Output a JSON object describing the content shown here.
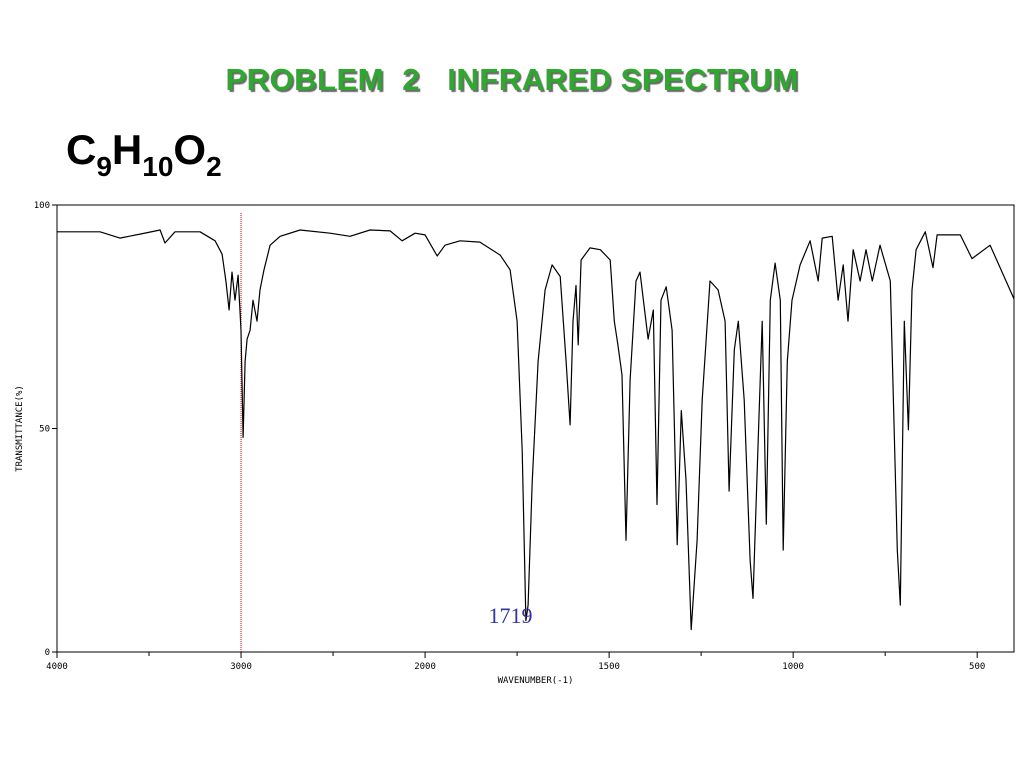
{
  "chart_data": {
    "type": "line",
    "title": "PROBLEM  2   INFRARED SPECTRUM",
    "formula": [
      {
        "text": "C"
      },
      {
        "text": "9",
        "sub": true
      },
      {
        "text": "H"
      },
      {
        "text": "10",
        "sub": true
      },
      {
        "text": "O"
      },
      {
        "text": "2",
        "sub": true
      }
    ],
    "xlabel": "WAVENUMBER(-1)",
    "ylabel": "TRANSMITTANCE(%)",
    "xlim": [
      4000,
      400
    ],
    "xscale": {
      "break": 2000,
      "factor": 2
    },
    "xticks": [
      4000,
      3000,
      2000,
      1500,
      1000,
      500
    ],
    "xminor_ticks": [
      3500,
      2500,
      1750,
      1250,
      750
    ],
    "ylim": [
      0,
      100
    ],
    "yticks": [
      0,
      50,
      100
    ],
    "color": "#000000",
    "vline": {
      "x": 3000,
      "color": "#c00000"
    },
    "annotations": [
      {
        "text": "1719",
        "x": 1719,
        "y": 6,
        "color": "#3333aa"
      }
    ],
    "x": [
      4000,
      3766,
      3658,
      3549,
      3440,
      3413,
      3359,
      3223,
      3141,
      3103,
      3082,
      3065,
      3049,
      3033,
      3016,
      3000,
      2989,
      2978,
      2967,
      2951,
      2935,
      2913,
      2897,
      2875,
      2842,
      2788,
      2679,
      2516,
      2408,
      2299,
      2190,
      2125,
      2054,
      2000,
      1967,
      1946,
      1905,
      1851,
      1796,
      1769,
      1750,
      1736,
      1726,
      1720,
      1709,
      1693,
      1674,
      1655,
      1633,
      1617,
      1606,
      1598,
      1590,
      1584,
      1576,
      1552,
      1524,
      1497,
      1486,
      1476,
      1465,
      1454,
      1443,
      1427,
      1416,
      1394,
      1380,
      1370,
      1359,
      1345,
      1329,
      1315,
      1304,
      1291,
      1277,
      1261,
      1247,
      1226,
      1204,
      1185,
      1174,
      1160,
      1149,
      1133,
      1117,
      1109,
      1095,
      1084,
      1073,
      1062,
      1049,
      1035,
      1027,
      1016,
      1003,
      981,
      954,
      932,
      921,
      894,
      878,
      864,
      851,
      837,
      818,
      802,
      785,
      764,
      736,
      717,
      709,
      698,
      687,
      677,
      666,
      641,
      620,
      609,
      546,
      514,
      465,
      400
    ],
    "values": [
      94,
      94,
      92.6,
      93.5,
      94.4,
      91.5,
      94,
      94,
      92,
      89,
      83,
      76.5,
      85,
      78.7,
      84.3,
      72,
      48,
      65,
      70,
      72,
      78.7,
      74,
      81,
      85.5,
      91,
      93,
      94.4,
      93.7,
      93,
      94.4,
      94.2,
      92,
      93.7,
      93.3,
      88.6,
      91,
      92,
      91.7,
      88.8,
      85.5,
      74,
      45,
      7,
      10.5,
      38,
      65,
      81,
      86.6,
      84,
      65,
      50.8,
      74,
      82,
      68.7,
      87.7,
      90.4,
      90,
      87.7,
      74,
      68.7,
      62,
      25,
      60.8,
      83,
      85,
      70,
      76.5,
      33,
      78.7,
      81.7,
      72,
      24,
      54,
      38.5,
      5,
      25,
      56.4,
      83,
      81,
      74,
      36,
      67.6,
      74,
      56.4,
      20.6,
      12,
      47.4,
      74,
      28.6,
      78.7,
      87,
      78.7,
      22.8,
      65,
      78.7,
      86.6,
      92,
      83,
      92.6,
      93,
      78.7,
      86.6,
      74,
      90,
      83,
      90,
      83,
      91,
      83,
      22.8,
      10.5,
      74,
      49.7,
      81,
      90,
      94,
      86,
      93.3,
      93.3,
      88,
      91,
      79
    ]
  }
}
